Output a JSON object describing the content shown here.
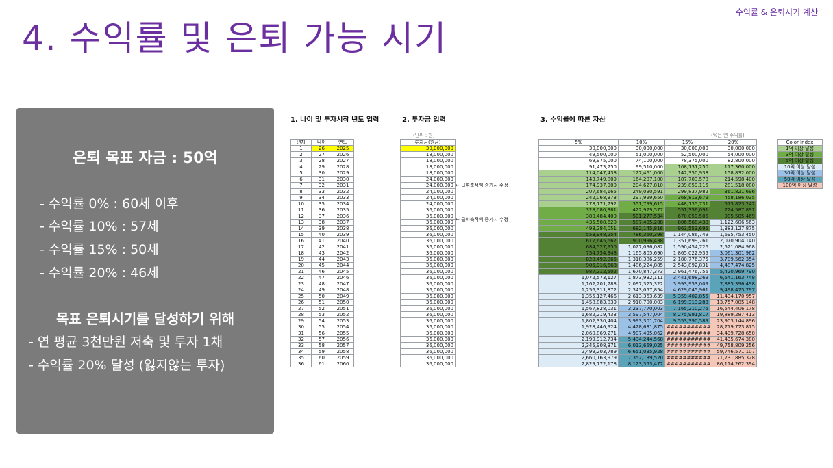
{
  "header": {
    "caption": "수익률 & 은퇴시기 계산",
    "title": "4. 수익률 및 은퇴 가능 시기"
  },
  "summary": {
    "target": "은퇴 목표 자금 : 50억",
    "rates": [
      "- 수익률   0% : 60세 이후",
      "- 수익률 10% : 57세",
      "- 수익률 15% : 50세",
      "- 수익률 20% : 46세"
    ],
    "goal_heading": "목표 은퇴시기를 달성하기 위해",
    "actions": [
      "- 연 평균 3천만원 저축 및 투자 1채",
      "- 수익률 20% 달성 (잃지않는 투자)"
    ]
  },
  "sheet": {
    "section1": "1. 나이 및 투자시작 년도 입력",
    "section2": "2. 투자금 입력",
    "section3": "3. 수익률에 따른 자산",
    "unit_left": "(단위 : 원)",
    "unit_right": "(%는 년 수익률)",
    "headers_left": [
      "년차",
      "나이",
      "연도"
    ],
    "header_invest": "투자금(원금)",
    "headers_rates": [
      "5%",
      "10%",
      "15%",
      "20%"
    ],
    "notes": [
      "← 급여축적액 증가시 수정",
      "← 급여축적액 증가시 수정"
    ],
    "color_index": {
      "header": "Color Index",
      "items": [
        {
          "label": "1억 이상 달성",
          "color": "#a9d08e"
        },
        {
          "label": "3억 이상 달성",
          "color": "#70ad47"
        },
        {
          "label": "5억 이상 달성",
          "color": "#548235"
        },
        {
          "label": "10억 이상 달성",
          "color": "#ddebf7"
        },
        {
          "label": "30억 이상 달성",
          "color": "#9bc2e6"
        },
        {
          "label": "50억 이상 달성",
          "color": "#5ba3b8"
        },
        {
          "label": "100억 이상 달성",
          "color": "#f4c7b8"
        }
      ]
    },
    "rows": [
      [
        "1",
        "26",
        "2025",
        "30,000,000",
        "30,000,000",
        "30,000,000",
        "30,000,000",
        "30,000,000"
      ],
      [
        "2",
        "27",
        "2026",
        "18,000,000",
        "49,500,000",
        "51,000,000",
        "52,500,000",
        "54,000,000"
      ],
      [
        "3",
        "28",
        "2027",
        "18,000,000",
        "69,975,000",
        "74,100,000",
        "78,375,000",
        "82,800,000"
      ],
      [
        "4",
        "29",
        "2028",
        "18,000,000",
        "91,473,750",
        "99,510,000",
        "108,131,250",
        "117,360,000"
      ],
      [
        "5",
        "30",
        "2029",
        "18,000,000",
        "114,047,438",
        "127,461,000",
        "142,350,938",
        "158,832,000"
      ],
      [
        "6",
        "31",
        "2030",
        "24,000,000",
        "143,749,809",
        "164,207,100",
        "187,703,578",
        "214,598,400"
      ],
      [
        "7",
        "32",
        "2031",
        "24,000,000",
        "174,937,300",
        "204,627,810",
        "239,859,115",
        "281,518,080"
      ],
      [
        "8",
        "33",
        "2032",
        "24,000,000",
        "207,684,165",
        "249,090,591",
        "299,837,982",
        "361,821,696"
      ],
      [
        "9",
        "34",
        "2033",
        "24,000,000",
        "242,068,373",
        "297,999,650",
        "368,813,679",
        "458,186,035"
      ],
      [
        "10",
        "35",
        "2034",
        "24,000,000",
        "278,171,792",
        "351,799,615",
        "448,135,731",
        "573,823,242"
      ],
      [
        "11",
        "36",
        "2035",
        "36,000,000",
        "328,080,381",
        "422,979,577",
        "551,356,091",
        "724,587,891"
      ],
      [
        "12",
        "37",
        "2036",
        "36,000,000",
        "380,484,400",
        "501,277,534",
        "670,059,505",
        "905,505,469"
      ],
      [
        "13",
        "38",
        "2037",
        "36,000,000",
        "435,508,620",
        "587,405,288",
        "806,568,430",
        "1,122,606,563"
      ],
      [
        "14",
        "39",
        "2038",
        "36,000,000",
        "493,284,051",
        "682,145,816",
        "963,553,695",
        "1,383,127,875"
      ],
      [
        "15",
        "40",
        "2039",
        "36,000,000",
        "553,948,254",
        "786,360,398",
        "1,144,086,749",
        "1,695,753,450"
      ],
      [
        "16",
        "41",
        "2040",
        "36,000,000",
        "617,645,667",
        "900,996,438",
        "1,351,699,761",
        "2,070,904,140"
      ],
      [
        "17",
        "42",
        "2041",
        "36,000,000",
        "684,527,950",
        "1,027,096,082",
        "1,590,454,726",
        "2,521,084,968"
      ],
      [
        "18",
        "43",
        "2042",
        "36,000,000",
        "754,754,348",
        "1,165,805,690",
        "1,865,022,935",
        "3,061,301,962"
      ],
      [
        "19",
        "44",
        "2043",
        "36,000,000",
        "828,492,065",
        "1,318,386,259",
        "2,180,776,375",
        "3,709,562,354"
      ],
      [
        "20",
        "45",
        "2044",
        "36,000,000",
        "905,916,668",
        "1,486,224,885",
        "2,543,892,831",
        "4,487,474,825"
      ],
      [
        "21",
        "46",
        "2045",
        "36,000,000",
        "987,212,502",
        "1,670,847,373",
        "2,961,476,756",
        "5,420,969,790"
      ],
      [
        "22",
        "47",
        "2046",
        "36,000,000",
        "1,072,573,127",
        "1,873,932,111",
        "3,441,698,269",
        "6,541,163,748"
      ],
      [
        "23",
        "48",
        "2047",
        "36,000,000",
        "1,162,201,783",
        "2,097,325,322",
        "3,993,953,009",
        "7,885,396,498"
      ],
      [
        "24",
        "49",
        "2048",
        "36,000,000",
        "1,256,311,872",
        "2,343,057,854",
        "4,629,045,961",
        "9,498,475,797"
      ],
      [
        "25",
        "50",
        "2049",
        "36,000,000",
        "1,355,127,466",
        "2,613,363,639",
        "5,359,402,855",
        "11,434,170,957"
      ],
      [
        "26",
        "51",
        "2050",
        "36,000,000",
        "1,458,883,839",
        "2,910,700,003",
        "6,199,313,283",
        "13,757,005,148"
      ],
      [
        "27",
        "52",
        "2051",
        "36,000,000",
        "1,567,828,031",
        "3,237,770,003",
        "7,165,210,275",
        "16,544,406,178"
      ],
      [
        "28",
        "53",
        "2052",
        "36,000,000",
        "1,682,219,433",
        "3,597,547,004",
        "8,275,991,817",
        "19,889,287,413"
      ],
      [
        "29",
        "54",
        "2053",
        "36,000,000",
        "1,802,330,404",
        "3,993,301,704",
        "9,553,390,589",
        "23,903,144,896"
      ],
      [
        "30",
        "55",
        "2054",
        "36,000,000",
        "1,928,446,924",
        "4,428,631,875",
        "###########",
        "28,719,773,875"
      ],
      [
        "31",
        "56",
        "2055",
        "36,000,000",
        "2,060,869,271",
        "4,907,495,062",
        "###########",
        "34,499,728,650"
      ],
      [
        "32",
        "57",
        "2056",
        "36,000,000",
        "2,199,912,734",
        "5,434,244,568",
        "###########",
        "41,435,674,380"
      ],
      [
        "33",
        "58",
        "2057",
        "36,000,000",
        "2,345,908,371",
        "6,013,669,025",
        "###########",
        "49,758,809,256"
      ],
      [
        "34",
        "59",
        "2058",
        "36,000,000",
        "2,499,203,789",
        "6,651,035,928",
        "###########",
        "59,746,571,107"
      ],
      [
        "35",
        "60",
        "2059",
        "36,000,000",
        "2,660,163,979",
        "7,352,139,520",
        "###########",
        "71,731,885,328"
      ],
      [
        "36",
        "61",
        "2060",
        "36,000,000",
        "2,829,172,178",
        "8,123,353,472",
        "###########",
        "86,114,262,394"
      ]
    ]
  }
}
